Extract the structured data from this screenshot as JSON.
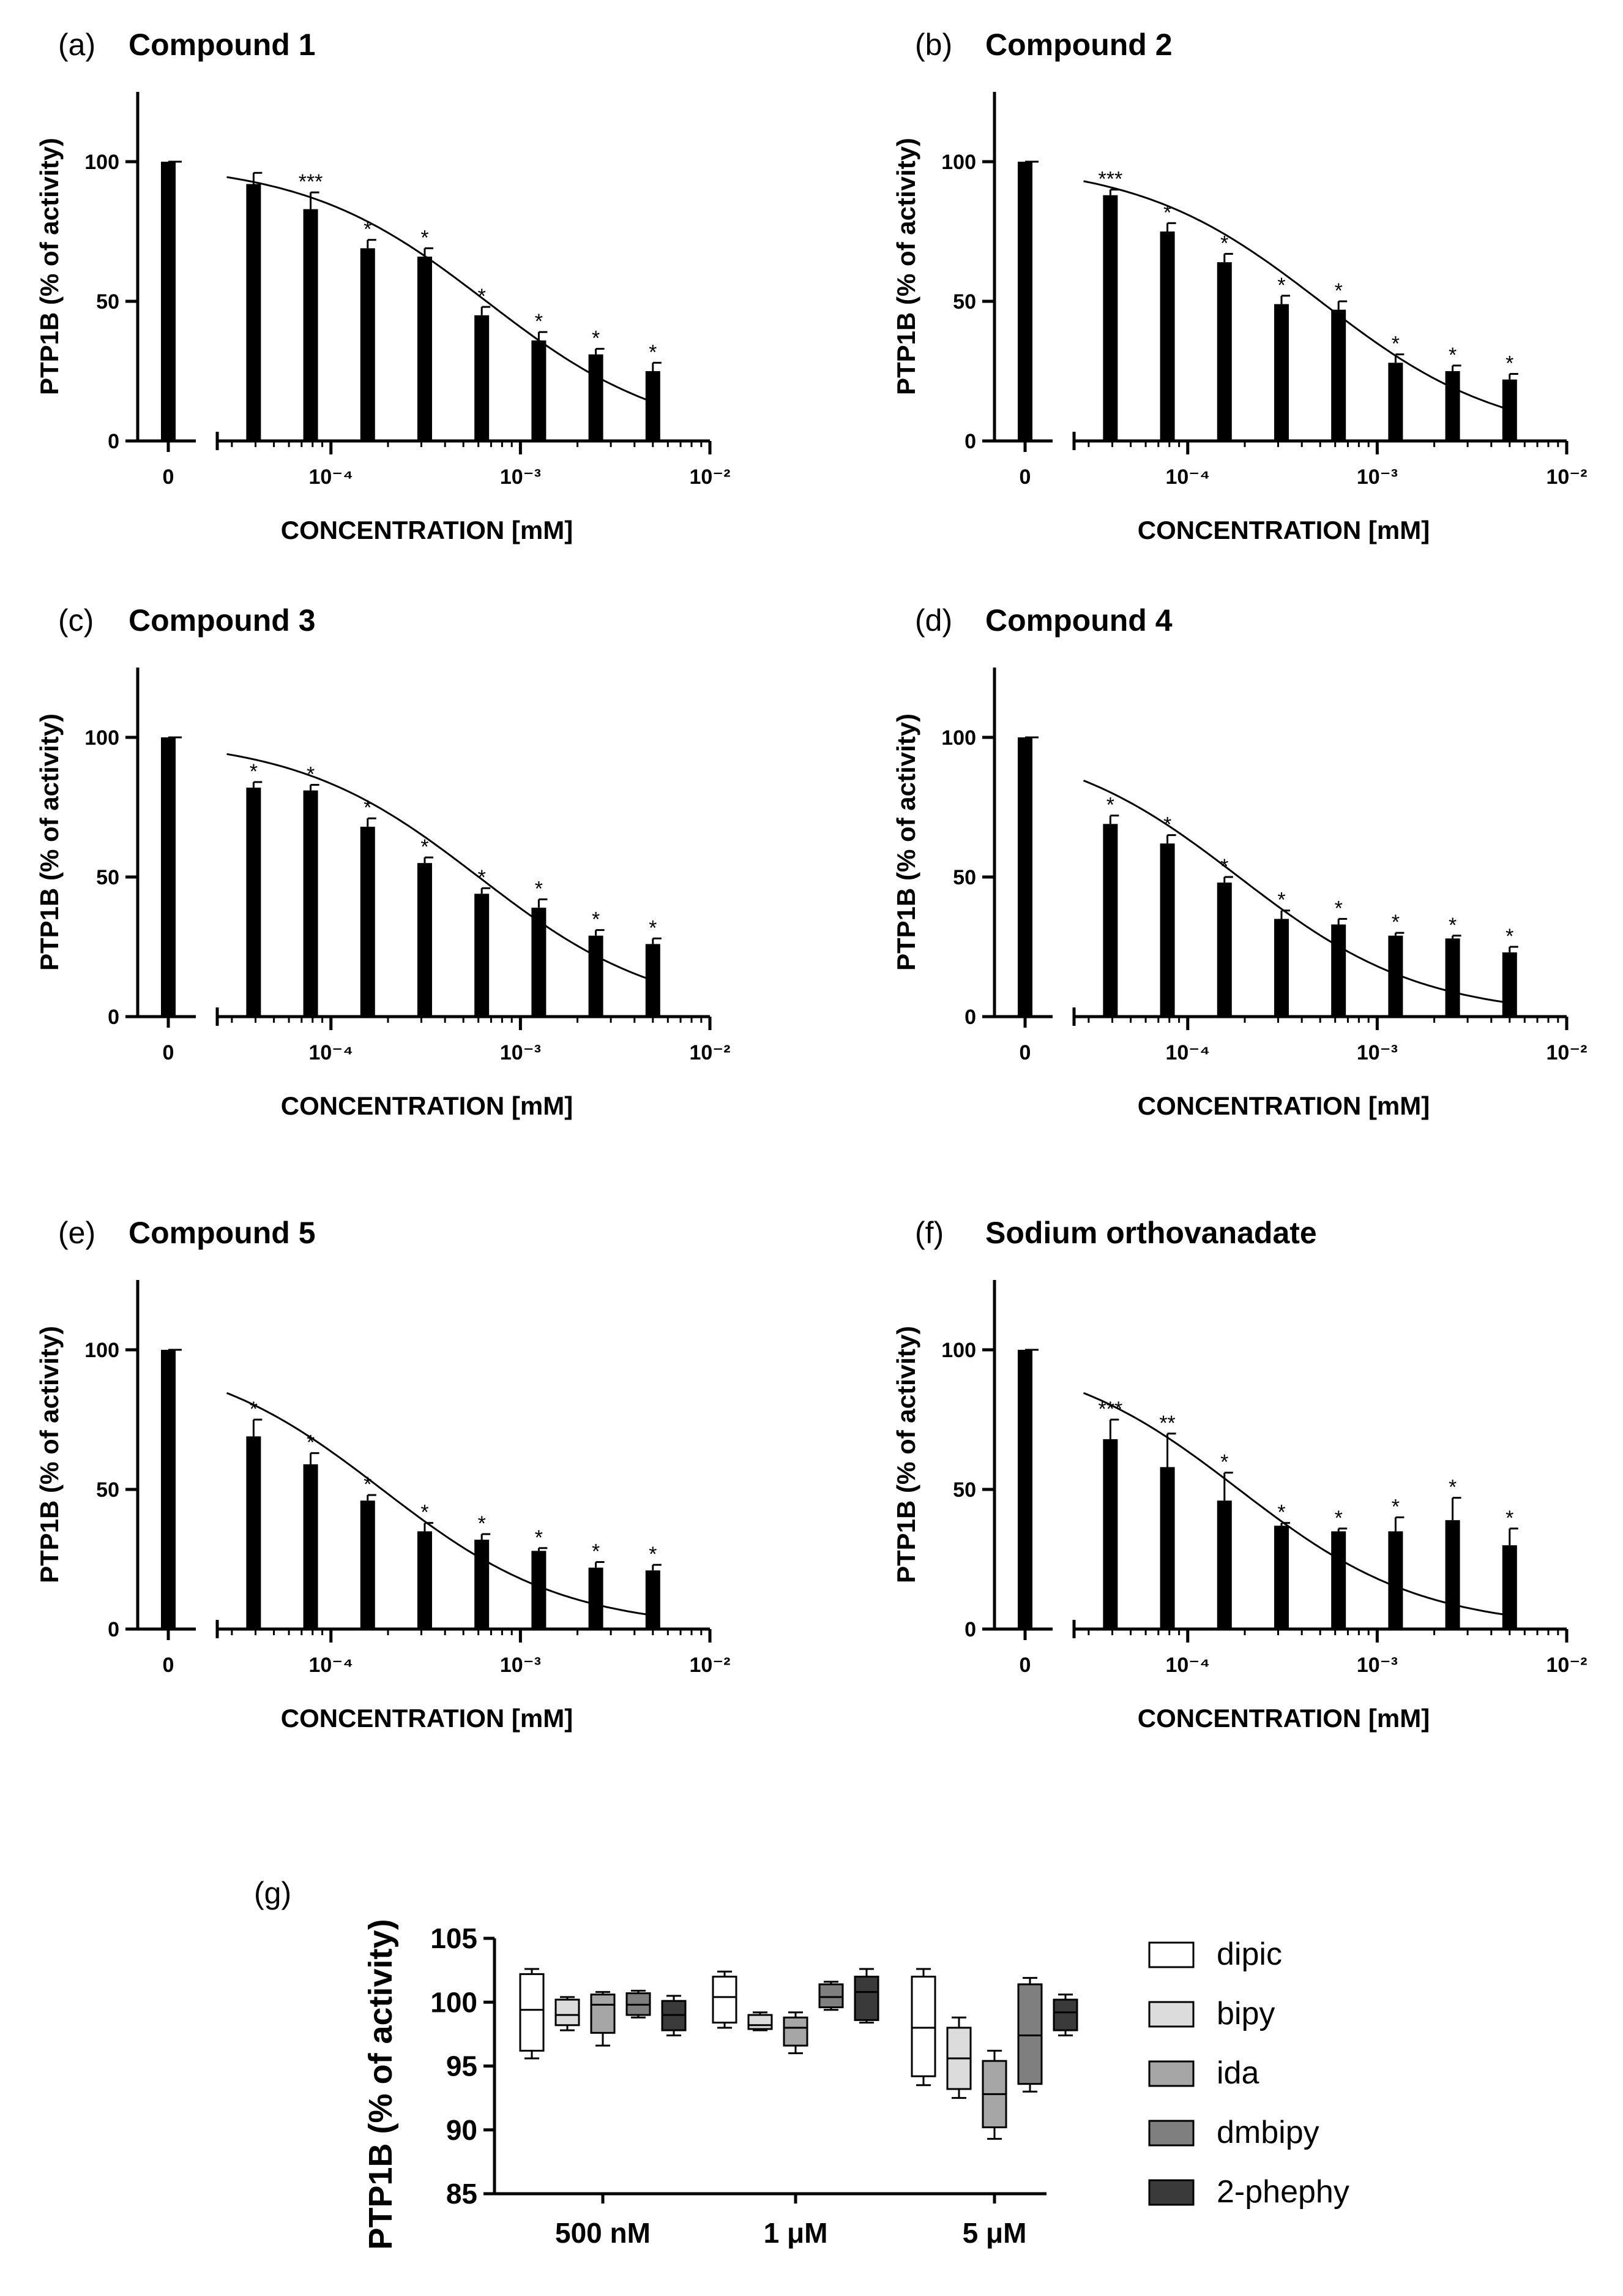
{
  "chart_data": [
    {
      "id": "a",
      "type": "bar",
      "panel_label": "(a)",
      "title": "Compound 1",
      "xlabel": "CONCENTRATION [mM]",
      "ylabel": "PTP1B (% of activity)",
      "ylim": [
        0,
        125
      ],
      "yticks": [
        0,
        50,
        100
      ],
      "x_scale": "log",
      "xlim_log10": [
        -4.6,
        -2.0
      ],
      "xtick_labels": {
        "zero": "0",
        "m4": "10⁻⁴",
        "m3": "10⁻³",
        "m2": "10⁻²"
      },
      "control": {
        "x": "0",
        "value": 100
      },
      "x": [
        3.90625e-05,
        7.8125e-05,
        0.00015625,
        0.0003125,
        0.000625,
        0.00125,
        0.0025,
        0.005
      ],
      "values": [
        92,
        83,
        69,
        66,
        45,
        36,
        31,
        25
      ],
      "errors": [
        4,
        6,
        3,
        3,
        3,
        3,
        2,
        3
      ],
      "significance": [
        "",
        "***",
        "*",
        "*",
        "*",
        "*",
        "*",
        "*"
      ],
      "fit_curve": {
        "top": 100,
        "bottom": 0,
        "log_ic50": -3.18,
        "hill": 0.9
      }
    },
    {
      "id": "b",
      "type": "bar",
      "panel_label": "(b)",
      "title": "Compound 2",
      "xlabel": "CONCENTRATION [mM]",
      "ylabel": "PTP1B (% of activity)",
      "ylim": [
        0,
        125
      ],
      "yticks": [
        0,
        50,
        100
      ],
      "x_scale": "log",
      "xlim_log10": [
        -4.6,
        -2.0
      ],
      "xtick_labels": {
        "zero": "0",
        "m4": "10⁻⁴",
        "m3": "10⁻³",
        "m2": "10⁻²"
      },
      "control": {
        "x": "0",
        "value": 100
      },
      "x": [
        3.90625e-05,
        7.8125e-05,
        0.00015625,
        0.0003125,
        0.000625,
        0.00125,
        0.0025,
        0.005
      ],
      "values": [
        88,
        75,
        64,
        49,
        47,
        28,
        25,
        22
      ],
      "errors": [
        2,
        3,
        3,
        3,
        3,
        3,
        2,
        2
      ],
      "significance": [
        "***",
        "*",
        "*",
        "*",
        "*",
        "*",
        "*",
        "*"
      ],
      "fit_curve": {
        "top": 100,
        "bottom": 0,
        "log_ic50": -3.3,
        "hill": 0.9
      }
    },
    {
      "id": "c",
      "type": "bar",
      "panel_label": "(c)",
      "title": "Compound 3",
      "xlabel": "CONCENTRATION [mM]",
      "ylabel": "PTP1B (% of activity)",
      "ylim": [
        0,
        125
      ],
      "yticks": [
        0,
        50,
        100
      ],
      "x_scale": "log",
      "xlim_log10": [
        -4.6,
        -2.0
      ],
      "xtick_labels": {
        "zero": "0",
        "m4": "10⁻⁴",
        "m3": "10⁻³",
        "m2": "10⁻²"
      },
      "control": {
        "x": "0",
        "value": 100
      },
      "x": [
        3.90625e-05,
        7.8125e-05,
        0.00015625,
        0.0003125,
        0.000625,
        0.00125,
        0.0025,
        0.005
      ],
      "values": [
        82,
        81,
        68,
        55,
        44,
        39,
        29,
        26
      ],
      "errors": [
        2,
        2,
        3,
        2,
        2,
        3,
        2,
        2
      ],
      "significance": [
        "*",
        "*",
        "*",
        "*",
        "*",
        "*",
        "*",
        "*"
      ],
      "fit_curve": {
        "top": 100,
        "bottom": 0,
        "log_ic50": -3.22,
        "hill": 0.9
      }
    },
    {
      "id": "d",
      "type": "bar",
      "panel_label": "(d)",
      "title": "Compound 4",
      "xlabel": "CONCENTRATION [mM]",
      "ylabel": "PTP1B (% of activity)",
      "ylim": [
        0,
        125
      ],
      "yticks": [
        0,
        50,
        100
      ],
      "x_scale": "log",
      "xlim_log10": [
        -4.6,
        -2.0
      ],
      "xtick_labels": {
        "zero": "0",
        "m4": "10⁻⁴",
        "m3": "10⁻³",
        "m2": "10⁻²"
      },
      "control": {
        "x": "0",
        "value": 100
      },
      "x": [
        3.90625e-05,
        7.8125e-05,
        0.00015625,
        0.0003125,
        0.000625,
        0.00125,
        0.0025,
        0.005
      ],
      "values": [
        69,
        62,
        48,
        35,
        33,
        29,
        28,
        23
      ],
      "errors": [
        3,
        3,
        2,
        3,
        2,
        1,
        1,
        2
      ],
      "significance": [
        "*",
        "*",
        "*",
        "*",
        "*",
        "*",
        "*",
        "*"
      ],
      "fit_curve": {
        "top": 100,
        "bottom": 0,
        "log_ic50": -3.73,
        "hill": 0.9
      }
    },
    {
      "id": "e",
      "type": "bar",
      "panel_label": "(e)",
      "title": "Compound 5",
      "xlabel": "CONCENTRATION [mM]",
      "ylabel": "PTP1B (% of activity)",
      "ylim": [
        0,
        125
      ],
      "yticks": [
        0,
        50,
        100
      ],
      "x_scale": "log",
      "xlim_log10": [
        -4.6,
        -2.0
      ],
      "xtick_labels": {
        "zero": "0",
        "m4": "10⁻⁴",
        "m3": "10⁻³",
        "m2": "10⁻²"
      },
      "control": {
        "x": "0",
        "value": 100
      },
      "x": [
        3.90625e-05,
        7.8125e-05,
        0.00015625,
        0.0003125,
        0.000625,
        0.00125,
        0.0025,
        0.005
      ],
      "values": [
        69,
        59,
        46,
        35,
        32,
        28,
        22,
        21
      ],
      "errors": [
        6,
        4,
        2,
        3,
        2,
        1,
        2,
        2
      ],
      "significance": [
        "*",
        "*",
        "*",
        "*",
        "*",
        "*",
        "*",
        "*"
      ],
      "fit_curve": {
        "top": 100,
        "bottom": 0,
        "log_ic50": -3.73,
        "hill": 0.9
      }
    },
    {
      "id": "f",
      "type": "bar",
      "panel_label": "(f)",
      "title": "Sodium orthovanadate",
      "xlabel": "CONCENTRATION [mM]",
      "ylabel": "PTP1B (% of activity)",
      "ylim": [
        0,
        125
      ],
      "yticks": [
        0,
        50,
        100
      ],
      "x_scale": "log",
      "xlim_log10": [
        -4.6,
        -2.0
      ],
      "xtick_labels": {
        "zero": "0",
        "m4": "10⁻⁴",
        "m3": "10⁻³",
        "m2": "10⁻²"
      },
      "control": {
        "x": "0",
        "value": 100
      },
      "x": [
        3.90625e-05,
        7.8125e-05,
        0.00015625,
        0.0003125,
        0.000625,
        0.00125,
        0.0025,
        0.005
      ],
      "values": [
        68,
        58,
        46,
        37,
        35,
        35,
        39,
        30
      ],
      "errors": [
        7,
        12,
        10,
        1,
        1,
        5,
        8,
        6
      ],
      "significance": [
        "***",
        "**",
        "*",
        "*",
        "*",
        "*",
        "*",
        "*"
      ],
      "fit_curve": {
        "top": 100,
        "bottom": 0,
        "log_ic50": -3.73,
        "hill": 0.9
      }
    },
    {
      "id": "g",
      "type": "box",
      "panel_label": "(g)",
      "ylabel": "PTP1B (% of activity)",
      "ylim": [
        85,
        105
      ],
      "yticks": [
        85,
        90,
        95,
        100,
        105
      ],
      "categories": [
        "500 nM",
        "1 μM",
        "5 μM"
      ],
      "series": [
        {
          "name": "dipic",
          "color": "#ffffff",
          "boxes": [
            {
              "min": 95.6,
              "q1": 96.2,
              "median": 99.4,
              "q3": 102.2,
              "max": 102.6
            },
            {
              "min": 98.0,
              "q1": 98.4,
              "median": 100.4,
              "q3": 102.0,
              "max": 102.4
            },
            {
              "min": 93.5,
              "q1": 94.2,
              "median": 98.0,
              "q3": 102.0,
              "max": 102.6
            }
          ]
        },
        {
          "name": "bipy",
          "color": "#dcdcdc",
          "boxes": [
            {
              "min": 97.8,
              "q1": 98.2,
              "median": 99.0,
              "q3": 100.2,
              "max": 100.4
            },
            {
              "min": 97.8,
              "q1": 97.9,
              "median": 98.2,
              "q3": 99.0,
              "max": 99.2
            },
            {
              "min": 92.5,
              "q1": 93.2,
              "median": 95.6,
              "q3": 98.0,
              "max": 98.8
            }
          ]
        },
        {
          "name": "ida",
          "color": "#a6a6a6",
          "boxes": [
            {
              "min": 96.6,
              "q1": 97.6,
              "median": 99.8,
              "q3": 100.6,
              "max": 100.8
            },
            {
              "min": 96.0,
              "q1": 96.6,
              "median": 98.0,
              "q3": 98.8,
              "max": 99.2
            },
            {
              "min": 89.3,
              "q1": 90.2,
              "median": 92.8,
              "q3": 95.4,
              "max": 96.2
            }
          ]
        },
        {
          "name": "dmbipy",
          "color": "#7f7f7f",
          "boxes": [
            {
              "min": 98.8,
              "q1": 99.0,
              "median": 99.8,
              "q3": 100.7,
              "max": 100.9
            },
            {
              "min": 99.4,
              "q1": 99.6,
              "median": 100.4,
              "q3": 101.4,
              "max": 101.6
            },
            {
              "min": 93.0,
              "q1": 93.6,
              "median": 97.4,
              "q3": 101.4,
              "max": 101.9
            }
          ]
        },
        {
          "name": "2-phephy",
          "color": "#3a3a3a",
          "boxes": [
            {
              "min": 97.4,
              "q1": 97.8,
              "median": 99.0,
              "q3": 100.1,
              "max": 100.5
            },
            {
              "min": 98.4,
              "q1": 98.6,
              "median": 100.8,
              "q3": 102.0,
              "max": 102.6
            },
            {
              "min": 97.4,
              "q1": 97.8,
              "median": 99.2,
              "q3": 100.2,
              "max": 100.6
            }
          ]
        }
      ]
    }
  ]
}
